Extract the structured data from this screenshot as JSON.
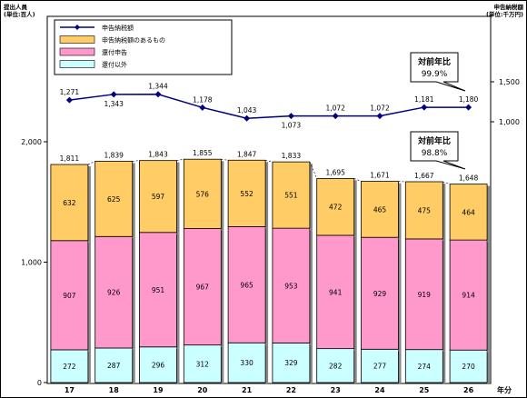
{
  "chart_data": {
    "type": "bar",
    "stacked": true,
    "left_axis_label": "提出人員\n(単位:百人)",
    "right_axis_label": "申告納税額\n(単位:千万円)",
    "x_unit_label": "年分",
    "categories": [
      "17",
      "18",
      "19",
      "20",
      "21",
      "22",
      "23",
      "24",
      "25",
      "26"
    ],
    "left_ticks": [
      "0",
      "1,000",
      "2,000"
    ],
    "left_tick_values": [
      0,
      1000,
      2000
    ],
    "right_ticks": [
      "1,000",
      "1,500"
    ],
    "right_tick_values": [
      1000,
      1500
    ],
    "ylim_left": [
      0,
      2000
    ],
    "series": [
      {
        "name": "還付以外",
        "values": [
          272,
          287,
          296,
          312,
          330,
          329,
          282,
          277,
          274,
          270
        ],
        "color": "#ccffff"
      },
      {
        "name": "還付申告",
        "values": [
          907,
          926,
          951,
          967,
          965,
          953,
          941,
          929,
          919,
          914
        ],
        "color": "#ff99cc"
      },
      {
        "name": "申告納税額のあるもの",
        "values": [
          632,
          625,
          597,
          576,
          552,
          551,
          472,
          465,
          475,
          464
        ],
        "color": "#ffcc66"
      }
    ],
    "totals": [
      1811,
      1839,
      1843,
      1855,
      1847,
      1833,
      1695,
      1671,
      1667,
      1648
    ],
    "total_labels": [
      "1,811",
      "1,839",
      "1,843",
      "1,855",
      "1,847",
      "1,833",
      "1,695",
      "1,671",
      "1,667",
      "1,648"
    ],
    "line_series": {
      "name": "申告納税額",
      "axis": "right",
      "values": [
        1271,
        1343,
        1344,
        1178,
        1043,
        1073,
        1072,
        1072,
        1181,
        1180
      ],
      "labels": [
        "1,271",
        "1,343",
        "1,344",
        "1,178",
        "1,043",
        "1,073",
        "1,072",
        "1,072",
        "1,181",
        "1,180"
      ],
      "color": "#000080"
    },
    "annotations": [
      {
        "title": "対前年比",
        "value": "99.9%",
        "target": "line"
      },
      {
        "title": "対前年比",
        "value": "98.8%",
        "target": "bars"
      }
    ],
    "legend_position": "top-left",
    "legend_order": [
      "申告納税額",
      "申告納税額のあるもの",
      "還付申告",
      "還付以外"
    ]
  }
}
